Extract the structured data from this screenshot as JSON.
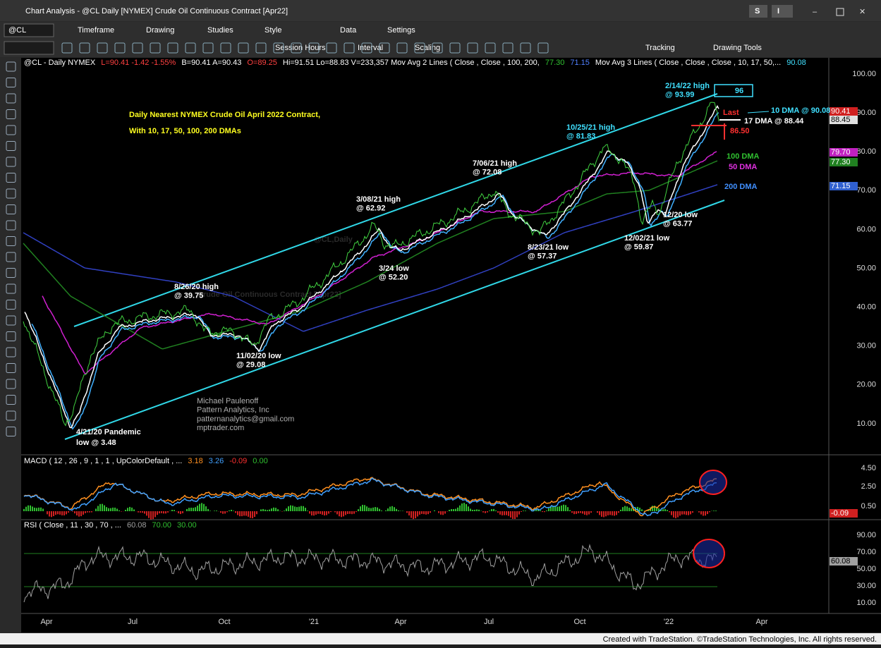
{
  "window": {
    "title": "Chart Analysis - @CL Daily [NYMEX] Crude Oil Continuous Contract [Apr22]",
    "buttons": [
      "S",
      "I"
    ]
  },
  "toolbar1": [
    "@CL",
    "Timeframe",
    "Drawing",
    "Studies",
    "Style",
    "Data",
    "Settings"
  ],
  "toolbar2": [
    "Session Hours",
    "Interval",
    "Scaling",
    "Tracking",
    "Drawing Tools"
  ],
  "chart": {
    "header": [
      {
        "text": "@CL - Daily  NYMEX",
        "color": "#ffffff"
      },
      {
        "text": "L=90.41  -1.42  -1.55%",
        "color": "#ff4040"
      },
      {
        "text": "B=90.41  A=90.43",
        "color": "#ffffff"
      },
      {
        "text": "O=89.25",
        "color": "#ff4040"
      },
      {
        "text": "Hi=91.51  Lo=88.83  V=233,357  Mov Avg 2 Lines (    Close ,     Close ,  100,  200,",
        "color": "#ffffff"
      },
      {
        "text": "77.30",
        "color": "#30c030"
      },
      {
        "text": "71.15",
        "color": "#5080ff"
      },
      {
        "text": "Mov Avg 3 Lines (  Close ,  Close ,  Close ,  10,  17,  50,...",
        "color": "#ffffff"
      },
      {
        "text": "90.08",
        "color": "#40e0ff"
      }
    ],
    "title": [
      "Daily Nearest NYMEX Crude Oil April 2022 Contract,",
      "With 10, 17, 50, 100, 200 DMAs"
    ],
    "watermark": [
      "@CL,Daily",
      "Crude Oil Continuous Contract [Apr22]"
    ],
    "annotations": [
      {
        "lines": [
          "2/14/22 high",
          "@ 93.99"
        ],
        "color": "#40e0ff"
      },
      {
        "lines": [
          "96"
        ],
        "color": "#40e0ff"
      },
      {
        "lines": [
          "Last"
        ],
        "color": "#ff3030"
      },
      {
        "lines": [
          "10 DMA @ 90.08"
        ],
        "color": "#40e0ff"
      },
      {
        "lines": [
          "17 DMA @ 88.44"
        ],
        "color": "#ffffff"
      },
      {
        "lines": [
          "86.50"
        ],
        "color": "#ff3030"
      },
      {
        "lines": [
          "10/25/21 high",
          "@ 81.83"
        ],
        "color": "#40e0ff"
      },
      {
        "lines": [
          "100 DMA"
        ],
        "color": "#30c030"
      },
      {
        "lines": [
          "50 DMA"
        ],
        "color": "#e030e0"
      },
      {
        "lines": [
          "200 DMA"
        ],
        "color": "#4090ff"
      },
      {
        "lines": [
          "7/06/21 high",
          "@ 72.08"
        ],
        "color": "#ffffff"
      },
      {
        "lines": [
          "3/08/21 high",
          "@ 62.92"
        ],
        "color": "#ffffff"
      },
      {
        "lines": [
          "12/20 low",
          "@ 63.77"
        ],
        "color": "#ffffff"
      },
      {
        "lines": [
          "12/02/21 low",
          "@ 59.87"
        ],
        "color": "#ffffff"
      },
      {
        "lines": [
          "8/23/21 low",
          "@ 57.37"
        ],
        "color": "#ffffff"
      },
      {
        "lines": [
          "3/24 low",
          "@ 52.20"
        ],
        "color": "#ffffff"
      },
      {
        "lines": [
          "8/26/20 high",
          "@ 39.75"
        ],
        "color": "#ffffff"
      },
      {
        "lines": [
          "11/02/20 low",
          "@ 29.08"
        ],
        "color": "#ffffff"
      },
      {
        "lines": [
          "Michael Paulenoff",
          "Pattern Analytics, Inc",
          "patternanalytics@gmail.com",
          "mptrader.com"
        ],
        "color": "#b0b0b0"
      },
      {
        "lines": [
          "4/21/20 Pandemic",
          " low @ 3.48"
        ],
        "color": "#ffffff"
      }
    ],
    "price_axis": [
      "100.00",
      "90.00",
      "80.00",
      "70.00",
      "60.00",
      "50.00",
      "40.00",
      "30.00",
      "20.00",
      "10.00"
    ],
    "price_boxes": [
      {
        "text": "90.41",
        "color": "#d02020"
      },
      {
        "text": "88.45",
        "color": "#e0e0e0"
      },
      {
        "text": "79.70",
        "color": "#c020c0"
      },
      {
        "text": "77.30",
        "color": "#208020"
      },
      {
        "text": "71.15",
        "color": "#3060d0"
      }
    ],
    "macd": {
      "header": [
        {
          "text": "MACD ( 12 , 26 , 9 , 1 , 1 , UpColorDefault , ...",
          "color": "#ffffff"
        },
        {
          "text": "3.18",
          "color": "#ff9020"
        },
        {
          "text": "3.26",
          "color": "#40a0ff"
        },
        {
          "text": "-0.09",
          "color": "#ff3030"
        },
        {
          "text": "0.00",
          "color": "#30c030"
        }
      ],
      "axis": [
        "4.50",
        "2.50",
        "0.50"
      ],
      "box": "-0.09"
    },
    "rsi": {
      "header": [
        {
          "text": "RSI ( Close , 11 , 30 , 70 , ...",
          "color": "#ffffff"
        },
        {
          "text": "60.08",
          "color": "#a0a0a0"
        },
        {
          "text": "70.00",
          "color": "#30c030"
        },
        {
          "text": "30.00",
          "color": "#30c030"
        }
      ],
      "axis": [
        "90.00",
        "70.00",
        "50.00",
        "30.00",
        "10.00"
      ],
      "box": "60.08"
    },
    "x_axis": [
      "Apr",
      "Jul",
      "Oct",
      "'21",
      "Apr",
      "Jul",
      "Oct",
      "'22",
      "Apr"
    ]
  },
  "footer": "Created with TradeStation. ©TradeStation Technologies, Inc. All rights reserved."
}
